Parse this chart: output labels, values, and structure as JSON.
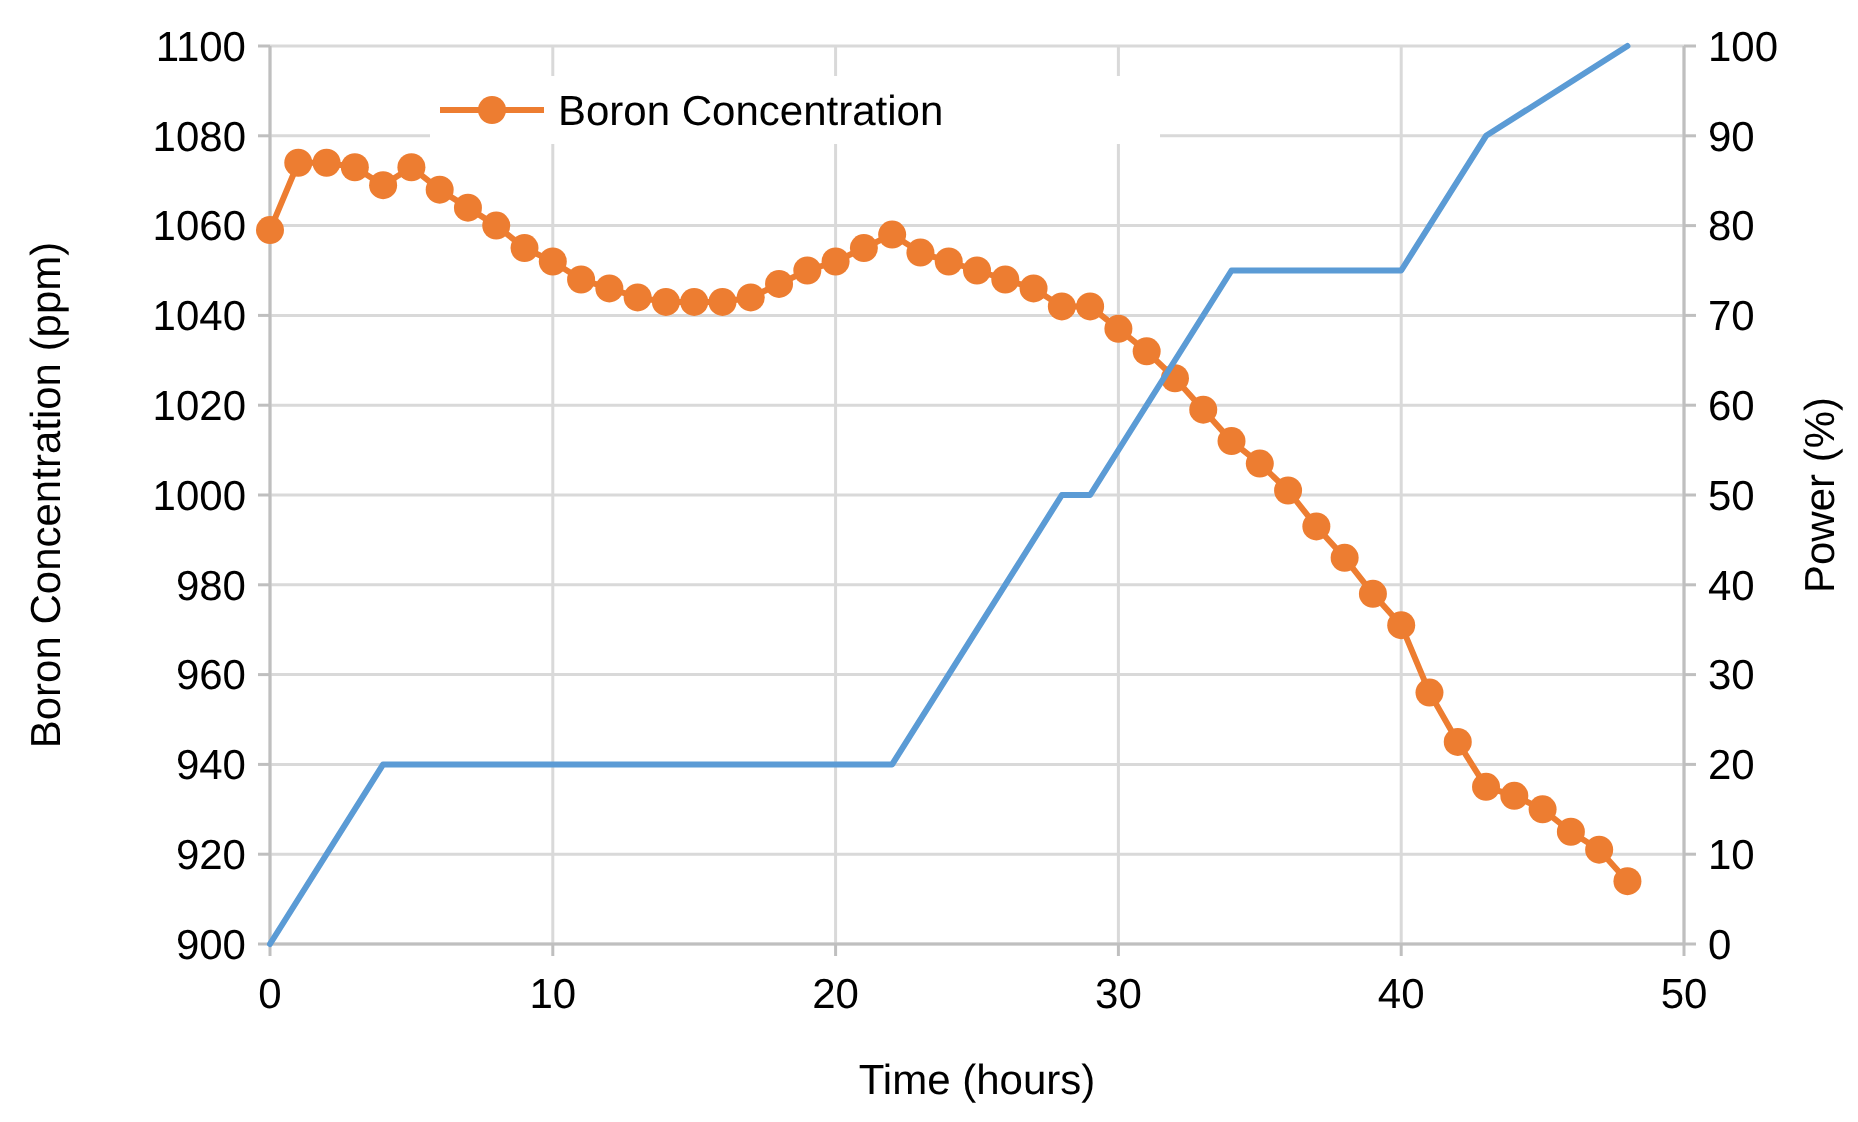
{
  "chart_data": {
    "type": "line",
    "xlabel": "Time (hours)",
    "ylabel": "Boron Concentration (ppm)",
    "y2label": "Power (%)",
    "xlim": [
      0,
      50
    ],
    "xticks": [
      0,
      10,
      20,
      30,
      40,
      50
    ],
    "ylim": [
      900,
      1100
    ],
    "yticks": [
      900,
      920,
      940,
      960,
      980,
      1000,
      1020,
      1040,
      1060,
      1080,
      1100
    ],
    "y2lim": [
      0,
      100
    ],
    "y2ticks": [
      0,
      10,
      20,
      30,
      40,
      50,
      60,
      70,
      80,
      90,
      100
    ],
    "grid": true,
    "legend": "top left",
    "line_style": "solid",
    "series": [
      {
        "name": "Boron Concentration",
        "color": "#ed7d31",
        "marker": "circle",
        "x": [
          0,
          1,
          2,
          3,
          4,
          5,
          6,
          7,
          8,
          9,
          10,
          11,
          12,
          13,
          14,
          15,
          16,
          17,
          18,
          19,
          20,
          21,
          22,
          23,
          24,
          25,
          26,
          27,
          28,
          29,
          30,
          31,
          32,
          33,
          34,
          35,
          36,
          37,
          38,
          39,
          40,
          41,
          42,
          43,
          44,
          45,
          46,
          47,
          48
        ],
        "values": [
          1059,
          1074,
          1074,
          1073,
          1069,
          1073,
          1068,
          1064,
          1060,
          1055,
          1052,
          1048,
          1046,
          1044,
          1043,
          1043,
          1043,
          1044,
          1047,
          1050,
          1052,
          1055,
          1058,
          1054,
          1052,
          1050,
          1048,
          1046,
          1042,
          1042,
          1037,
          1032,
          1026,
          1019,
          1012,
          1007,
          1001,
          993,
          986,
          978,
          971,
          956,
          945,
          935,
          933,
          930,
          925,
          921,
          914
        ]
      },
      {
        "color": "#5b9bd5",
        "marker": "none",
        "axis": "y2",
        "x": [
          0,
          4,
          22,
          28,
          29,
          34,
          40,
          43,
          48
        ],
        "values": [
          0,
          20,
          20,
          50,
          50,
          75,
          75,
          90,
          100
        ]
      }
    ]
  }
}
